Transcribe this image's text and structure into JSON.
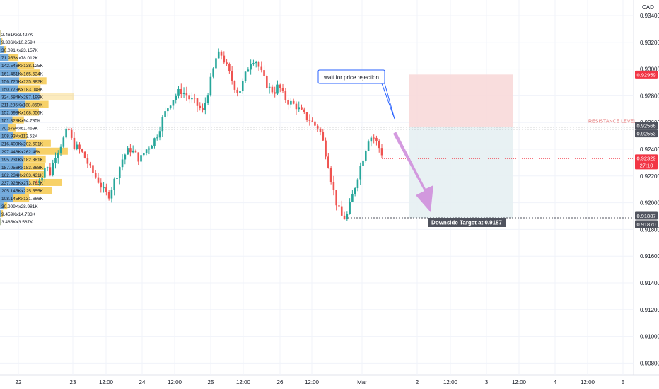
{
  "currency": "CAD",
  "colors": {
    "up": "#26a69a",
    "down": "#ef5350",
    "grid": "#f0f3fa",
    "resistance": "#e57373",
    "current_price": "#f23645",
    "target_tag": "#50535e",
    "arrow": "#cf8fdc",
    "callout_border": "#2962ff",
    "stop_zone": "#f8d7d7",
    "target_zone": "#e6eff2",
    "vp_blue": "#5b9bd5",
    "vp_orange": "#f5c542"
  },
  "price_axis": {
    "ticks": [
      "0.93400",
      "0.93200",
      "0.93000",
      "0.92800",
      "0.92600",
      "0.92400",
      "0.92200",
      "0.92000",
      "0.91800",
      "0.91600",
      "0.91400",
      "0.91200",
      "0.91000",
      "0.90800"
    ],
    "range": [
      0.9065,
      0.935
    ]
  },
  "price_tags": {
    "stop": "0.92959",
    "resistance_1": "0.92566",
    "resistance_2": "0.92553",
    "current": "0.92329",
    "countdown": "27:10",
    "target_1": "0.91887",
    "target_2": "0.91870"
  },
  "time_axis": {
    "labels": [
      "22",
      "23",
      "12:00",
      "24",
      "12:00",
      "25",
      "12:00",
      "26",
      "12:00",
      "Mar",
      "2",
      "12:00",
      "3",
      "12:00",
      "4",
      "12:00",
      "5"
    ]
  },
  "volume_profile": {
    "labels": [
      "2.461Kx3.427K",
      "9.386Kx10.259K",
      "30.091Kx23.157K",
      "71.953Kx78.012K",
      "142.546Kx138.125K",
      "161.461Kx165.534K",
      "156.725Kx225.882K",
      "150.779Kx183.048K",
      "324.684Kx287.199K",
      "211.285Kx188.859K",
      "152.698Kx168.056K",
      "101.828Kx94.785K",
      "70.679Kx61.469K",
      "108.93Kx112.52K",
      "216.409Kx202.601K",
      "297.446Kx262.48K",
      "195.231Kx182.381K",
      "187.056Kx183.368K",
      "162.234Kx203.431K",
      "237.926Kx273.763K",
      "205.145Kx225.555K",
      "108.145Kx131.666K",
      "30.999Kx28.981K",
      "9.459Kx14.733K",
      "3.485Kx3.567K"
    ],
    "buy": [
      2,
      9,
      30,
      72,
      143,
      161,
      157,
      151,
      325,
      211,
      153,
      102,
      71,
      109,
      216,
      297,
      195,
      187,
      162,
      238,
      205,
      108,
      31,
      9,
      3
    ],
    "sell": [
      3,
      10,
      23,
      78,
      138,
      166,
      226,
      183,
      287,
      189,
      168,
      95,
      61,
      113,
      203,
      262,
      182,
      183,
      203,
      274,
      226,
      132,
      29,
      15,
      4
    ]
  },
  "annotations": {
    "resistance_label": "RESISTANCE LEVEL",
    "callout": "wait for price rejection",
    "target_label": "Downside Target at 0.9187"
  },
  "levels": {
    "resistance": 0.92566,
    "target": 0.91887,
    "current": 0.92329,
    "stop": 0.92959
  },
  "chart_data": {
    "type": "candlestick",
    "symbol_quote": "CAD",
    "ylim": [
      0.9065,
      0.935
    ],
    "x_labels": [
      "22",
      "23",
      "12:00",
      "24",
      "12:00",
      "25",
      "12:00",
      "26",
      "12:00",
      "Mar",
      "2",
      "12:00",
      "3",
      "12:00",
      "4",
      "12:00",
      "5"
    ],
    "close_path": [
      [
        0.9215,
        0.922
      ],
      [
        0.9228,
        0.9222
      ],
      [
        0.9235,
        0.9241
      ],
      [
        0.9248,
        0.9256
      ],
      [
        0.9244,
        0.9241
      ],
      [
        0.9238,
        0.9232
      ],
      [
        0.9225,
        0.922
      ],
      [
        0.9215,
        0.9208
      ],
      [
        0.9205,
        0.9214
      ],
      [
        0.9222,
        0.9232
      ],
      [
        0.9238,
        0.924
      ],
      [
        0.9236,
        0.9232
      ],
      [
        0.9238,
        0.9242
      ],
      [
        0.9246,
        0.9252
      ],
      [
        0.9262,
        0.927
      ],
      [
        0.9276,
        0.928
      ],
      [
        0.9284,
        0.9282
      ],
      [
        0.9278,
        0.9276
      ],
      [
        0.9272,
        0.9268
      ],
      [
        0.928,
        0.9294
      ],
      [
        0.9308,
        0.9312
      ],
      [
        0.9305,
        0.9296
      ],
      [
        0.9288,
        0.9282
      ],
      [
        0.929,
        0.93
      ],
      [
        0.9308,
        0.9306
      ],
      [
        0.9298,
        0.929
      ],
      [
        0.9285,
        0.9283
      ],
      [
        0.9288,
        0.928
      ],
      [
        0.9276,
        0.9274
      ],
      [
        0.9272,
        0.9268
      ],
      [
        0.9264,
        0.9262
      ],
      [
        0.9258,
        0.9256
      ],
      [
        0.9244,
        0.923
      ],
      [
        0.9212,
        0.9198
      ],
      [
        0.919,
        0.9188
      ],
      [
        0.92,
        0.9212
      ],
      [
        0.9225,
        0.9236
      ],
      [
        0.9248,
        0.925
      ],
      [
        0.9244,
        0.9237
      ]
    ],
    "series": [
      {
        "name": "Resistance",
        "value": 0.92566
      },
      {
        "name": "Downside Target",
        "value": 0.9187
      }
    ]
  }
}
